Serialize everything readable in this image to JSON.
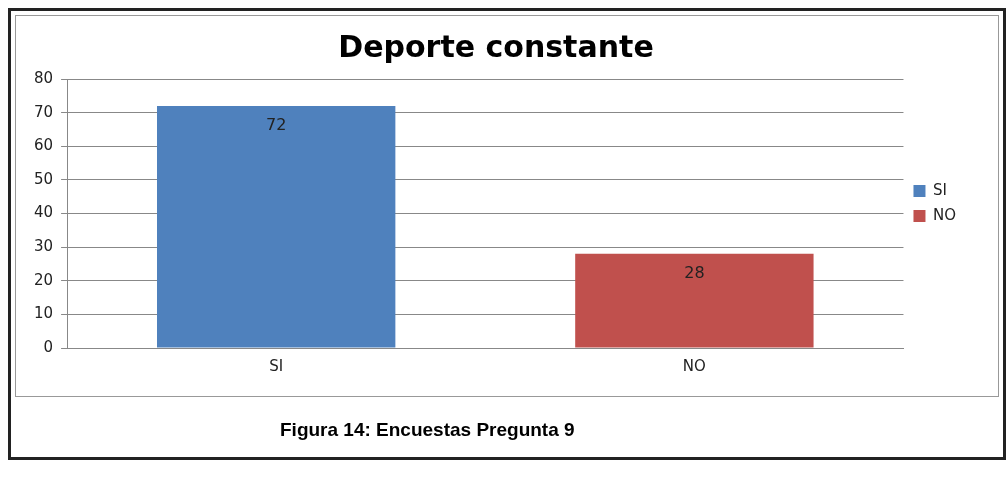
{
  "chart_data": {
    "type": "bar",
    "title": "Deporte constante",
    "categories": [
      "SI",
      "NO"
    ],
    "series": [
      {
        "name": "SI",
        "color": "#4f81bd",
        "values": [
          72,
          null
        ]
      },
      {
        "name": "NO",
        "color": "#c0504d",
        "values": [
          null,
          28
        ]
      }
    ],
    "ylim": [
      0,
      80
    ],
    "yticks": [
      0,
      10,
      20,
      30,
      40,
      50,
      60,
      70,
      80
    ],
    "grid": "y",
    "legend": "right",
    "data_labels": true,
    "annotations": [
      "Figura 14: Encuestas Pregunta 9"
    ]
  }
}
